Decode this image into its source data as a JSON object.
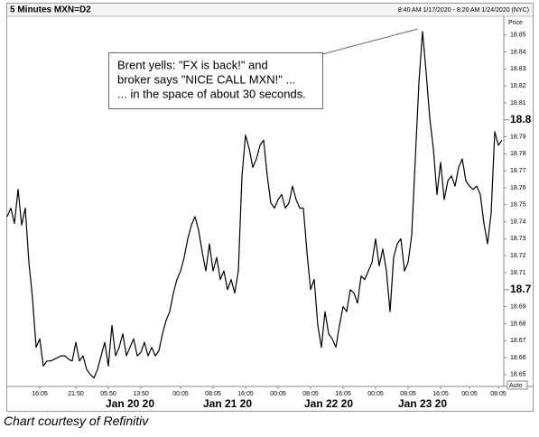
{
  "chart_data": {
    "type": "line",
    "title": "5 Minutes MXN=D2",
    "subtitle": "8:40 AM 1/17/2020 - 8:20 AM 1/24/2020 (NYC)",
    "y_label": "Price",
    "scale_button": "Auto",
    "annotations": [
      "Brent yells: \"FX is back!\" and",
      "broker says \"NICE CALL MXN!\" ...",
      "... in the space of about 30 seconds."
    ],
    "caption": "Chart courtesy of Refinitiv",
    "color": "#000000",
    "xlim": [
      0,
      137
    ],
    "xticks": [
      {
        "value": 9,
        "label": "16:05"
      },
      {
        "value": 19,
        "label": "21:50"
      },
      {
        "value": 28,
        "label": "05:50"
      },
      {
        "value": 37,
        "label": "13:50"
      },
      {
        "value": 48,
        "label": "00:05"
      },
      {
        "value": 57,
        "label": "08:05"
      },
      {
        "value": 66,
        "label": "16:05"
      },
      {
        "value": 75,
        "label": "00:05"
      },
      {
        "value": 84,
        "label": "08:05"
      },
      {
        "value": 93,
        "label": "16:05"
      },
      {
        "value": 102,
        "label": "00:05"
      },
      {
        "value": 111,
        "label": "08:05"
      },
      {
        "value": 120,
        "label": "16:05"
      },
      {
        "value": 128,
        "label": "00:05"
      },
      {
        "value": 136,
        "label": "08:05"
      }
    ],
    "day_labels": [
      {
        "value": 34,
        "label": "Jan 20 20"
      },
      {
        "value": 61,
        "label": "Jan 21 20"
      },
      {
        "value": 89,
        "label": "Jan 22 20"
      },
      {
        "value": 115,
        "label": "Jan 23 20"
      }
    ],
    "ylim": [
      18.643,
      18.861
    ],
    "yticks": [
      18.65,
      18.66,
      18.67,
      18.68,
      18.69,
      18.7,
      18.71,
      18.72,
      18.73,
      18.74,
      18.75,
      18.76,
      18.77,
      18.78,
      18.79,
      18.8,
      18.81,
      18.82,
      18.83,
      18.84,
      18.85
    ],
    "values": [
      18.743,
      18.748,
      18.739,
      18.759,
      18.738,
      18.748,
      18.716,
      18.695,
      18.666,
      18.671,
      18.655,
      18.658,
      18.658,
      18.659,
      18.66,
      18.661,
      18.661,
      18.659,
      18.658,
      18.669,
      18.658,
      18.661,
      18.653,
      18.65,
      18.648,
      18.653,
      18.661,
      18.669,
      18.655,
      18.679,
      18.661,
      18.666,
      18.674,
      18.661,
      18.666,
      18.671,
      18.661,
      18.663,
      18.669,
      18.661,
      18.666,
      18.661,
      18.664,
      18.674,
      18.682,
      18.687,
      18.698,
      18.706,
      18.711,
      18.719,
      18.73,
      18.738,
      18.743,
      18.735,
      18.722,
      18.711,
      18.727,
      18.711,
      18.719,
      18.706,
      18.711,
      18.7,
      18.706,
      18.698,
      18.711,
      18.767,
      18.791,
      18.783,
      18.772,
      18.777,
      18.785,
      18.788,
      18.767,
      18.751,
      18.748,
      18.753,
      18.756,
      18.748,
      18.751,
      18.761,
      18.753,
      18.748,
      18.748,
      18.722,
      18.7,
      18.706,
      18.679,
      18.666,
      18.687,
      18.674,
      18.671,
      18.666,
      18.679,
      18.69,
      18.687,
      18.7,
      18.698,
      18.692,
      18.708,
      18.706,
      18.711,
      18.716,
      18.73,
      18.714,
      18.724,
      18.711,
      18.687,
      18.719,
      18.727,
      18.73,
      18.711,
      18.716,
      18.732,
      18.777,
      18.822,
      18.852,
      18.828,
      18.801,
      18.783,
      18.756,
      18.775,
      18.753,
      18.764,
      18.767,
      18.761,
      18.772,
      18.777,
      18.764,
      18.761,
      18.759,
      18.761,
      18.756,
      18.739,
      18.727,
      18.745,
      18.793,
      18.785,
      18.788
    ]
  }
}
